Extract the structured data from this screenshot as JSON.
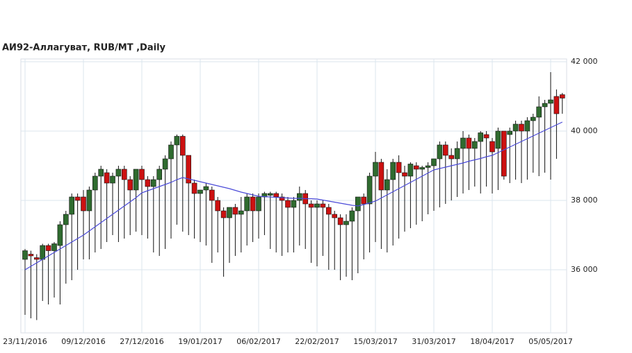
{
  "chart_data": {
    "type": "candlestick",
    "title": "АИ92-Аллагуват,  RUB/MT ,Daily",
    "categories": [
      "23/11/2016",
      null,
      null,
      null,
      null,
      null,
      null,
      null,
      null,
      null,
      "09/12/2016",
      null,
      null,
      null,
      null,
      null,
      null,
      null,
      null,
      null,
      "27/12/2016",
      null,
      null,
      null,
      null,
      null,
      null,
      null,
      null,
      null,
      "19/01/2017",
      null,
      null,
      null,
      null,
      null,
      null,
      null,
      null,
      null,
      "06/02/2017",
      null,
      null,
      null,
      null,
      null,
      null,
      null,
      null,
      null,
      "22/02/2017",
      null,
      null,
      null,
      null,
      null,
      null,
      null,
      null,
      null,
      "15/03/2017",
      null,
      null,
      null,
      null,
      null,
      null,
      null,
      null,
      null,
      "31/03/2017",
      null,
      null,
      null,
      null,
      null,
      null,
      null,
      null,
      null,
      "18/04/2017",
      null,
      null,
      null,
      null,
      null,
      null,
      null,
      null,
      null,
      "05/05/2017",
      null,
      null
    ],
    "candles": [
      [
        36300,
        36600,
        34700,
        36550
      ],
      [
        36450,
        36550,
        34600,
        36400
      ],
      [
        36350,
        36450,
        34550,
        36300
      ],
      [
        36300,
        36750,
        35100,
        36700
      ],
      [
        36700,
        36750,
        35000,
        36550
      ],
      [
        36550,
        36800,
        35200,
        36750
      ],
      [
        36700,
        37400,
        35000,
        37300
      ],
      [
        37300,
        37700,
        35600,
        37600
      ],
      [
        37600,
        38200,
        35700,
        38100
      ],
      [
        38100,
        38200,
        36000,
        38000
      ],
      [
        38100,
        38300,
        36300,
        37700
      ],
      [
        37700,
        38400,
        36300,
        38300
      ],
      [
        38300,
        38800,
        36500,
        38700
      ],
      [
        38700,
        39000,
        36600,
        38900
      ],
      [
        38800,
        38900,
        36800,
        38500
      ],
      [
        38500,
        38800,
        37000,
        38700
      ],
      [
        38700,
        39000,
        36800,
        38900
      ],
      [
        38900,
        39000,
        36900,
        38600
      ],
      [
        38600,
        38700,
        37000,
        38300
      ],
      [
        38300,
        38900,
        37100,
        38900
      ],
      [
        38900,
        39000,
        37000,
        38600
      ],
      [
        38600,
        38700,
        36900,
        38400
      ],
      [
        38400,
        38700,
        36500,
        38600
      ],
      [
        38600,
        39000,
        36400,
        38900
      ],
      [
        38900,
        39300,
        36600,
        39200
      ],
      [
        39200,
        39700,
        36900,
        39600
      ],
      [
        39600,
        39900,
        37300,
        39850
      ],
      [
        39850,
        39900,
        37100,
        39300
      ],
      [
        39300,
        39300,
        37000,
        38500
      ],
      [
        38500,
        38600,
        36900,
        38200
      ],
      [
        38200,
        38300,
        36800,
        38300
      ],
      [
        38300,
        38500,
        36700,
        38400
      ],
      [
        38300,
        38400,
        36200,
        38000
      ],
      [
        38000,
        38100,
        36500,
        37700
      ],
      [
        37700,
        37800,
        35800,
        37500
      ],
      [
        37500,
        37800,
        36200,
        37800
      ],
      [
        37800,
        37900,
        36400,
        37600
      ],
      [
        37600,
        38100,
        36500,
        37700
      ],
      [
        37700,
        38200,
        36700,
        38100
      ],
      [
        38100,
        38200,
        36800,
        37700
      ],
      [
        37700,
        38200,
        36900,
        38100
      ],
      [
        38100,
        38250,
        37000,
        38200
      ],
      [
        38150,
        38250,
        36600,
        38200
      ],
      [
        38200,
        38250,
        36500,
        38100
      ],
      [
        38100,
        38200,
        36400,
        38000
      ],
      [
        38000,
        38100,
        36500,
        37800
      ],
      [
        37800,
        38100,
        36500,
        38000
      ],
      [
        38000,
        38400,
        36700,
        38200
      ],
      [
        38200,
        38300,
        36600,
        37900
      ],
      [
        37900,
        38000,
        36200,
        37800
      ],
      [
        37800,
        38000,
        36100,
        37900
      ],
      [
        37900,
        38000,
        36400,
        37800
      ],
      [
        37800,
        37900,
        36000,
        37600
      ],
      [
        37600,
        37700,
        36000,
        37500
      ],
      [
        37500,
        37600,
        35700,
        37300
      ],
      [
        37300,
        37600,
        35800,
        37400
      ],
      [
        37400,
        37800,
        35700,
        37700
      ],
      [
        37700,
        38100,
        35900,
        38100
      ],
      [
        38100,
        38200,
        36300,
        37900
      ],
      [
        37900,
        38800,
        36500,
        38700
      ],
      [
        38700,
        39400,
        36800,
        39100
      ],
      [
        39100,
        39200,
        36600,
        38300
      ],
      [
        38300,
        38900,
        36500,
        38600
      ],
      [
        38600,
        39200,
        36700,
        39100
      ],
      [
        39100,
        39300,
        36900,
        38800
      ],
      [
        38800,
        39000,
        37100,
        38700
      ],
      [
        38700,
        39100,
        37200,
        39050
      ],
      [
        39000,
        39100,
        37300,
        38900
      ],
      [
        38900,
        39000,
        37400,
        38950
      ],
      [
        38950,
        39100,
        37600,
        39000
      ],
      [
        39000,
        39200,
        37700,
        39200
      ],
      [
        39200,
        39700,
        37800,
        39600
      ],
      [
        39600,
        39700,
        37900,
        39300
      ],
      [
        39300,
        39500,
        38000,
        39200
      ],
      [
        39200,
        39700,
        38100,
        39500
      ],
      [
        39500,
        40000,
        38200,
        39800
      ],
      [
        39800,
        39900,
        38300,
        39500
      ],
      [
        39500,
        39800,
        38400,
        39700
      ],
      [
        39700,
        40000,
        38200,
        39950
      ],
      [
        39900,
        40000,
        38400,
        39800
      ],
      [
        39700,
        39800,
        38200,
        39400
      ],
      [
        39500,
        40100,
        38300,
        40000
      ],
      [
        40000,
        40000,
        38600,
        38700
      ],
      [
        39900,
        40100,
        38500,
        40000
      ],
      [
        40000,
        40300,
        38600,
        40200
      ],
      [
        40200,
        40300,
        38500,
        40000
      ],
      [
        40000,
        40400,
        38600,
        40300
      ],
      [
        40300,
        40500,
        38800,
        40400
      ],
      [
        40400,
        41000,
        38700,
        40700
      ],
      [
        40700,
        40900,
        38800,
        40800
      ],
      [
        40800,
        41700,
        38600,
        40900
      ],
      [
        41000,
        41200,
        39200,
        40500
      ],
      [
        41050,
        41100,
        40500,
        40950
      ]
    ],
    "moving_average": [
      36000,
      36100,
      36200,
      36300,
      36400,
      36500,
      36600,
      36700,
      36800,
      36900,
      37000,
      37120,
      37240,
      37360,
      37480,
      37600,
      37720,
      37840,
      37960,
      38080,
      38220,
      38280,
      38340,
      38400,
      38460,
      38520,
      38600,
      38660,
      38620,
      38580,
      38540,
      38500,
      38460,
      38420,
      38380,
      38340,
      38290,
      38240,
      38200,
      38160,
      38120,
      38110,
      38100,
      38090,
      38080,
      38070,
      38060,
      38060,
      38050,
      38050,
      38040,
      38010,
      37980,
      37950,
      37920,
      37890,
      37860,
      37840,
      37880,
      37930,
      37980,
      38070,
      38160,
      38250,
      38340,
      38430,
      38520,
      38610,
      38700,
      38790,
      38880,
      38920,
      38960,
      39000,
      39040,
      39080,
      39130,
      39170,
      39210,
      39260,
      39300,
      39380,
      39460,
      39540,
      39620,
      39700,
      39780,
      39860,
      39940,
      40020,
      40100,
      40180,
      40260
    ],
    "up_color": "#2f6b2f",
    "down_color": "#cc1111",
    "ma_color": "#4a4ad8",
    "ylim": [
      34180,
      42080
    ],
    "yticks": [
      {
        "value": 36000,
        "label": "36 000"
      },
      {
        "value": 38000,
        "label": "38 000"
      },
      {
        "value": 40000,
        "label": "40 000"
      },
      {
        "value": 42000,
        "label": "42 000"
      }
    ],
    "grid": true
  }
}
